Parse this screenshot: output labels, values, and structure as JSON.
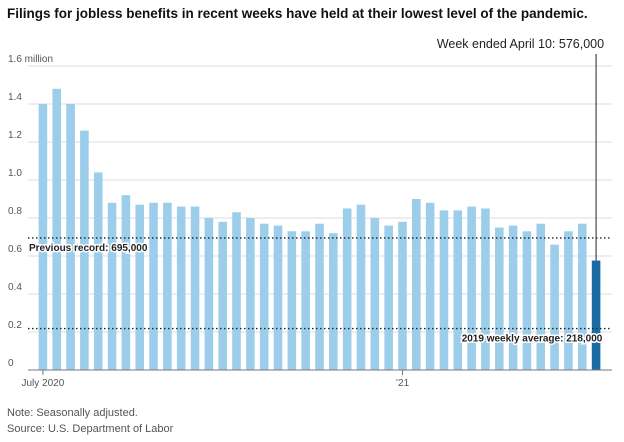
{
  "chart_data": {
    "type": "bar",
    "title": "Filings for jobless benefits in recent weeks have held at their lowest level of the pandemic.",
    "y_unit_label": "1.6 million",
    "ylim": [
      0,
      1.6
    ],
    "y_ticks": [
      0,
      0.2,
      0.4,
      0.6,
      0.8,
      1.0,
      1.2,
      1.4,
      1.6
    ],
    "y_tick_labels": [
      "0",
      "0.2",
      "0.4",
      "0.6",
      "0.8",
      "1.0",
      "1.2",
      "1.4",
      "1.6 million"
    ],
    "x_tick_labels": [
      {
        "label": "July 2020",
        "index": 0
      },
      {
        "label": "’21",
        "index": 26
      }
    ],
    "grid": true,
    "values": [
      1.4,
      1.48,
      1.4,
      1.26,
      1.04,
      0.88,
      0.92,
      0.87,
      0.88,
      0.88,
      0.86,
      0.86,
      0.8,
      0.78,
      0.83,
      0.8,
      0.77,
      0.76,
      0.73,
      0.73,
      0.77,
      0.72,
      0.85,
      0.87,
      0.8,
      0.76,
      0.78,
      0.9,
      0.88,
      0.84,
      0.84,
      0.86,
      0.85,
      0.75,
      0.76,
      0.73,
      0.77,
      0.66,
      0.73,
      0.77,
      0.576
    ],
    "highlight_index": 40,
    "colors": {
      "bar": "#9ccdea",
      "highlight": "#1a6ba3",
      "grid": "#dcdcdc",
      "reference": "#222222"
    },
    "reference_lines": [
      {
        "value": 0.695,
        "label": "Previous record: 695,000",
        "label_position": "left"
      },
      {
        "value": 0.218,
        "label": "2019 weekly average: 218,000",
        "label_position": "right"
      }
    ],
    "annotation": {
      "text": "Week ended April 10: 576,000",
      "index": 40
    },
    "note": "Note: Seasonally adjusted.",
    "source": "Source: U.S. Department of Labor"
  }
}
